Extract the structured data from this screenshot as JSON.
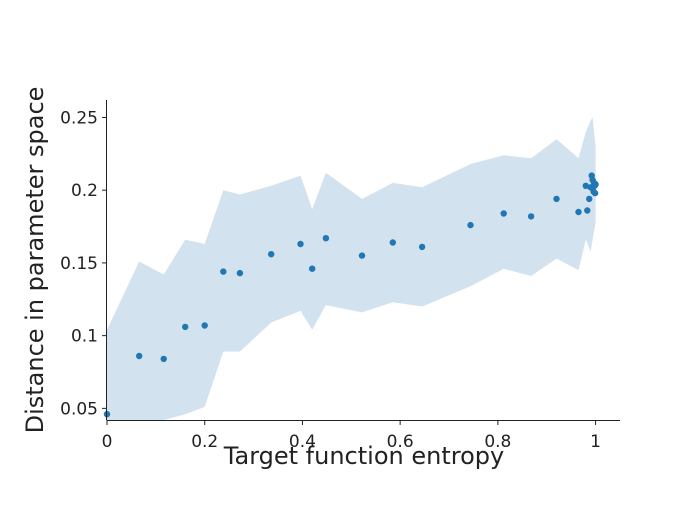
{
  "chart_data": {
    "type": "scatter",
    "title": "",
    "xlabel": "Target function entropy",
    "ylabel": "Distance in parameter space",
    "xlim": [
      0,
      1.05
    ],
    "ylim": [
      0.042,
      0.262
    ],
    "xticks": [
      0,
      0.2,
      0.4,
      0.6,
      0.8,
      1
    ],
    "xtick_labels": [
      "0",
      "0.2",
      "0.4",
      "0.6",
      "0.8",
      "1"
    ],
    "yticks": [
      0.05,
      0.1,
      0.15,
      0.2,
      0.25
    ],
    "ytick_labels": [
      "0.05",
      "0.1",
      "0.15",
      "0.2",
      "0.25"
    ],
    "grid": false,
    "legend": "none",
    "colors": {
      "points": "#1f77b4",
      "band": "#d3e2ef",
      "axis": "#222222"
    },
    "series": [
      {
        "points": [
          [
            0.0,
            0.046
          ],
          [
            0.066,
            0.086
          ],
          [
            0.116,
            0.084
          ],
          [
            0.16,
            0.106
          ],
          [
            0.2,
            0.107
          ],
          [
            0.238,
            0.144
          ],
          [
            0.272,
            0.143
          ],
          [
            0.336,
            0.156
          ],
          [
            0.396,
            0.163
          ],
          [
            0.42,
            0.146
          ],
          [
            0.448,
            0.167
          ],
          [
            0.522,
            0.155
          ],
          [
            0.585,
            0.164
          ],
          [
            0.645,
            0.161
          ],
          [
            0.744,
            0.176
          ],
          [
            0.812,
            0.184
          ],
          [
            0.868,
            0.182
          ],
          [
            0.92,
            0.194
          ],
          [
            0.965,
            0.185
          ],
          [
            0.98,
            0.203
          ],
          [
            0.983,
            0.186
          ],
          [
            0.987,
            0.194
          ],
          [
            0.99,
            0.202
          ],
          [
            0.992,
            0.21
          ],
          [
            0.994,
            0.207
          ],
          [
            0.996,
            0.199
          ],
          [
            0.997,
            0.205
          ],
          [
            0.998,
            0.203
          ],
          [
            0.999,
            0.198
          ],
          [
            1.0,
            0.204
          ]
        ],
        "band_upper": [
          [
            0.0,
            0.104
          ],
          [
            0.066,
            0.151
          ],
          [
            0.116,
            0.142
          ],
          [
            0.16,
            0.166
          ],
          [
            0.2,
            0.163
          ],
          [
            0.238,
            0.2
          ],
          [
            0.272,
            0.197
          ],
          [
            0.336,
            0.203
          ],
          [
            0.396,
            0.21
          ],
          [
            0.42,
            0.187
          ],
          [
            0.448,
            0.212
          ],
          [
            0.522,
            0.194
          ],
          [
            0.585,
            0.205
          ],
          [
            0.645,
            0.202
          ],
          [
            0.744,
            0.218
          ],
          [
            0.812,
            0.224
          ],
          [
            0.868,
            0.222
          ],
          [
            0.92,
            0.235
          ],
          [
            0.965,
            0.222
          ],
          [
            0.98,
            0.24
          ],
          [
            0.99,
            0.248
          ],
          [
            0.994,
            0.25
          ],
          [
            1.0,
            0.23
          ]
        ],
        "band_lower": [
          [
            0.0,
            0.042
          ],
          [
            0.066,
            0.042
          ],
          [
            0.116,
            0.042
          ],
          [
            0.16,
            0.046
          ],
          [
            0.2,
            0.051
          ],
          [
            0.238,
            0.089
          ],
          [
            0.272,
            0.089
          ],
          [
            0.336,
            0.109
          ],
          [
            0.396,
            0.117
          ],
          [
            0.42,
            0.104
          ],
          [
            0.448,
            0.121
          ],
          [
            0.522,
            0.116
          ],
          [
            0.585,
            0.123
          ],
          [
            0.645,
            0.12
          ],
          [
            0.744,
            0.134
          ],
          [
            0.812,
            0.146
          ],
          [
            0.868,
            0.141
          ],
          [
            0.92,
            0.153
          ],
          [
            0.965,
            0.145
          ],
          [
            0.98,
            0.166
          ],
          [
            0.99,
            0.158
          ],
          [
            0.994,
            0.166
          ],
          [
            1.0,
            0.178
          ]
        ]
      }
    ]
  }
}
